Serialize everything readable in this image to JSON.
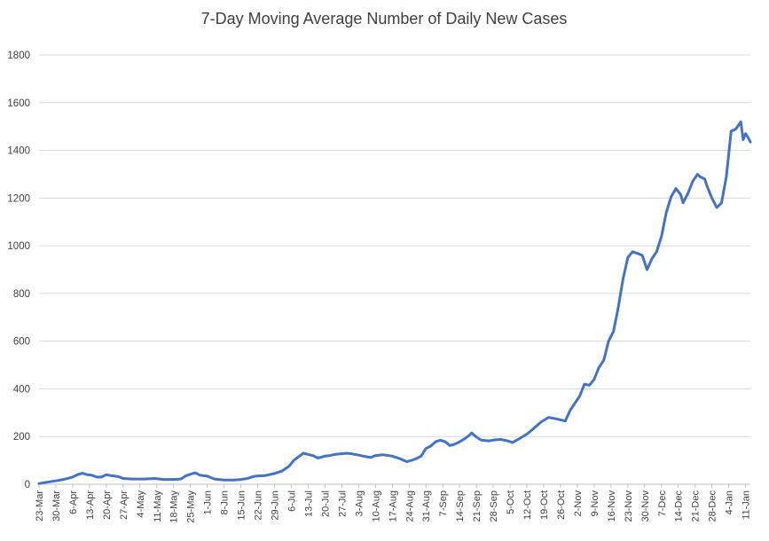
{
  "chart_data": {
    "type": "line",
    "title": "7-Day Moving Average Number of Daily New Cases",
    "xlabel": "",
    "ylabel": "",
    "ylim": [
      0,
      1800
    ],
    "y_ticks": [
      "0",
      "200",
      "400",
      "600",
      "800",
      "1000",
      "1200",
      "1400",
      "1600",
      "1800"
    ],
    "grid": true,
    "legend": "none",
    "x_start": "23-Mar",
    "x_end": "13-Jan",
    "x_ticks": [
      "23-Mar",
      "30-Mar",
      "6-Apr",
      "13-Apr",
      "20-Apr",
      "27-Apr",
      "4-May",
      "11-May",
      "18-May",
      "25-May",
      "1-Jun",
      "8-Jun",
      "15-Jun",
      "22-Jun",
      "29-Jun",
      "6-Jul",
      "13-Jul",
      "20-Jul",
      "27-Jul",
      "3-Aug",
      "10-Aug",
      "17-Aug",
      "24-Aug",
      "31-Aug",
      "7-Sep",
      "14-Sep",
      "21-Sep",
      "28-Sep",
      "5-Oct",
      "12-Oct",
      "19-Oct",
      "26-Oct",
      "2-Nov",
      "9-Nov",
      "16-Nov",
      "23-Nov",
      "30-Nov",
      "7-Dec",
      "14-Dec",
      "21-Dec",
      "28-Dec",
      "4-Jan",
      "11-Jan"
    ],
    "series": [
      {
        "color": "#4472c4",
        "points": [
          [
            "23-Mar",
            3
          ],
          [
            "26-Mar",
            8
          ],
          [
            "30-Mar",
            14
          ],
          [
            "3-Apr",
            22
          ],
          [
            "6-Apr",
            30
          ],
          [
            "8-Apr",
            40
          ],
          [
            "10-Apr",
            46
          ],
          [
            "12-Apr",
            40
          ],
          [
            "14-Apr",
            38
          ],
          [
            "16-Apr",
            30
          ],
          [
            "18-Apr",
            30
          ],
          [
            "20-Apr",
            40
          ],
          [
            "22-Apr",
            36
          ],
          [
            "25-Apr",
            32
          ],
          [
            "27-Apr",
            24
          ],
          [
            "1-May",
            22
          ],
          [
            "6-May",
            22
          ],
          [
            "10-May",
            24
          ],
          [
            "14-May",
            20
          ],
          [
            "18-May",
            20
          ],
          [
            "21-May",
            22
          ],
          [
            "23-May",
            35
          ],
          [
            "25-May",
            42
          ],
          [
            "27-May",
            48
          ],
          [
            "29-May",
            38
          ],
          [
            "1-Jun",
            34
          ],
          [
            "4-Jun",
            22
          ],
          [
            "8-Jun",
            18
          ],
          [
            "12-Jun",
            18
          ],
          [
            "15-Jun",
            20
          ],
          [
            "18-Jun",
            25
          ],
          [
            "20-Jun",
            32
          ],
          [
            "22-Jun",
            35
          ],
          [
            "25-Jun",
            36
          ],
          [
            "29-Jun",
            45
          ],
          [
            "2-Jul",
            55
          ],
          [
            "5-Jul",
            75
          ],
          [
            "7-Jul",
            100
          ],
          [
            "9-Jul",
            115
          ],
          [
            "11-Jul",
            130
          ],
          [
            "13-Jul",
            125
          ],
          [
            "15-Jul",
            120
          ],
          [
            "17-Jul",
            110
          ],
          [
            "20-Jul",
            118
          ],
          [
            "22-Jul",
            120
          ],
          [
            "24-Jul",
            125
          ],
          [
            "27-Jul",
            128
          ],
          [
            "29-Jul",
            130
          ],
          [
            "31-Jul",
            128
          ],
          [
            "3-Aug",
            122
          ],
          [
            "5-Aug",
            118
          ],
          [
            "8-Aug",
            112
          ],
          [
            "10-Aug",
            120
          ],
          [
            "13-Aug",
            124
          ],
          [
            "17-Aug",
            118
          ],
          [
            "20-Aug",
            108
          ],
          [
            "23-Aug",
            95
          ],
          [
            "25-Aug",
            100
          ],
          [
            "27-Aug",
            108
          ],
          [
            "29-Aug",
            118
          ],
          [
            "31-Aug",
            150
          ],
          [
            "2-Sep",
            160
          ],
          [
            "4-Sep",
            178
          ],
          [
            "6-Sep",
            185
          ],
          [
            "8-Sep",
            178
          ],
          [
            "10-Sep",
            162
          ],
          [
            "12-Sep",
            168
          ],
          [
            "14-Sep",
            178
          ],
          [
            "16-Sep",
            190
          ],
          [
            "18-Sep",
            205
          ],
          [
            "19-Sep",
            215
          ],
          [
            "21-Sep",
            198
          ],
          [
            "23-Sep",
            185
          ],
          [
            "26-Sep",
            182
          ],
          [
            "28-Sep",
            185
          ],
          [
            "1-Oct",
            188
          ],
          [
            "4-Oct",
            182
          ],
          [
            "6-Oct",
            175
          ],
          [
            "9-Oct",
            192
          ],
          [
            "12-Oct",
            210
          ],
          [
            "15-Oct",
            235
          ],
          [
            "18-Oct",
            262
          ],
          [
            "21-Oct",
            280
          ],
          [
            "24-Oct",
            275
          ],
          [
            "26-Oct",
            270
          ],
          [
            "28-Oct",
            265
          ],
          [
            "30-Oct",
            310
          ],
          [
            "1-Nov",
            340
          ],
          [
            "3-Nov",
            370
          ],
          [
            "5-Nov",
            420
          ],
          [
            "7-Nov",
            415
          ],
          [
            "9-Nov",
            440
          ],
          [
            "11-Nov",
            490
          ],
          [
            "13-Nov",
            520
          ],
          [
            "15-Nov",
            600
          ],
          [
            "17-Nov",
            640
          ],
          [
            "19-Nov",
            740
          ],
          [
            "21-Nov",
            860
          ],
          [
            "23-Nov",
            950
          ],
          [
            "25-Nov",
            975
          ],
          [
            "27-Nov",
            968
          ],
          [
            "29-Nov",
            960
          ],
          [
            "1-Dec",
            900
          ],
          [
            "3-Dec",
            945
          ],
          [
            "5-Dec",
            975
          ],
          [
            "7-Dec",
            1040
          ],
          [
            "9-Dec",
            1140
          ],
          [
            "11-Dec",
            1205
          ],
          [
            "13-Dec",
            1240
          ],
          [
            "15-Dec",
            1215
          ],
          [
            "16-Dec",
            1180
          ],
          [
            "18-Dec",
            1220
          ],
          [
            "20-Dec",
            1270
          ],
          [
            "22-Dec",
            1300
          ],
          [
            "23-Dec",
            1290
          ],
          [
            "25-Dec",
            1280
          ],
          [
            "26-Dec",
            1250
          ],
          [
            "28-Dec",
            1200
          ],
          [
            "30-Dec",
            1160
          ],
          [
            "1-Jan",
            1180
          ],
          [
            "3-Jan",
            1290
          ],
          [
            "5-Jan",
            1480
          ],
          [
            "7-Jan",
            1490
          ],
          [
            "9-Jan",
            1520
          ],
          [
            "10-Jan",
            1445
          ],
          [
            "11-Jan",
            1470
          ],
          [
            "12-Jan",
            1455
          ],
          [
            "13-Jan",
            1435
          ]
        ]
      }
    ]
  }
}
